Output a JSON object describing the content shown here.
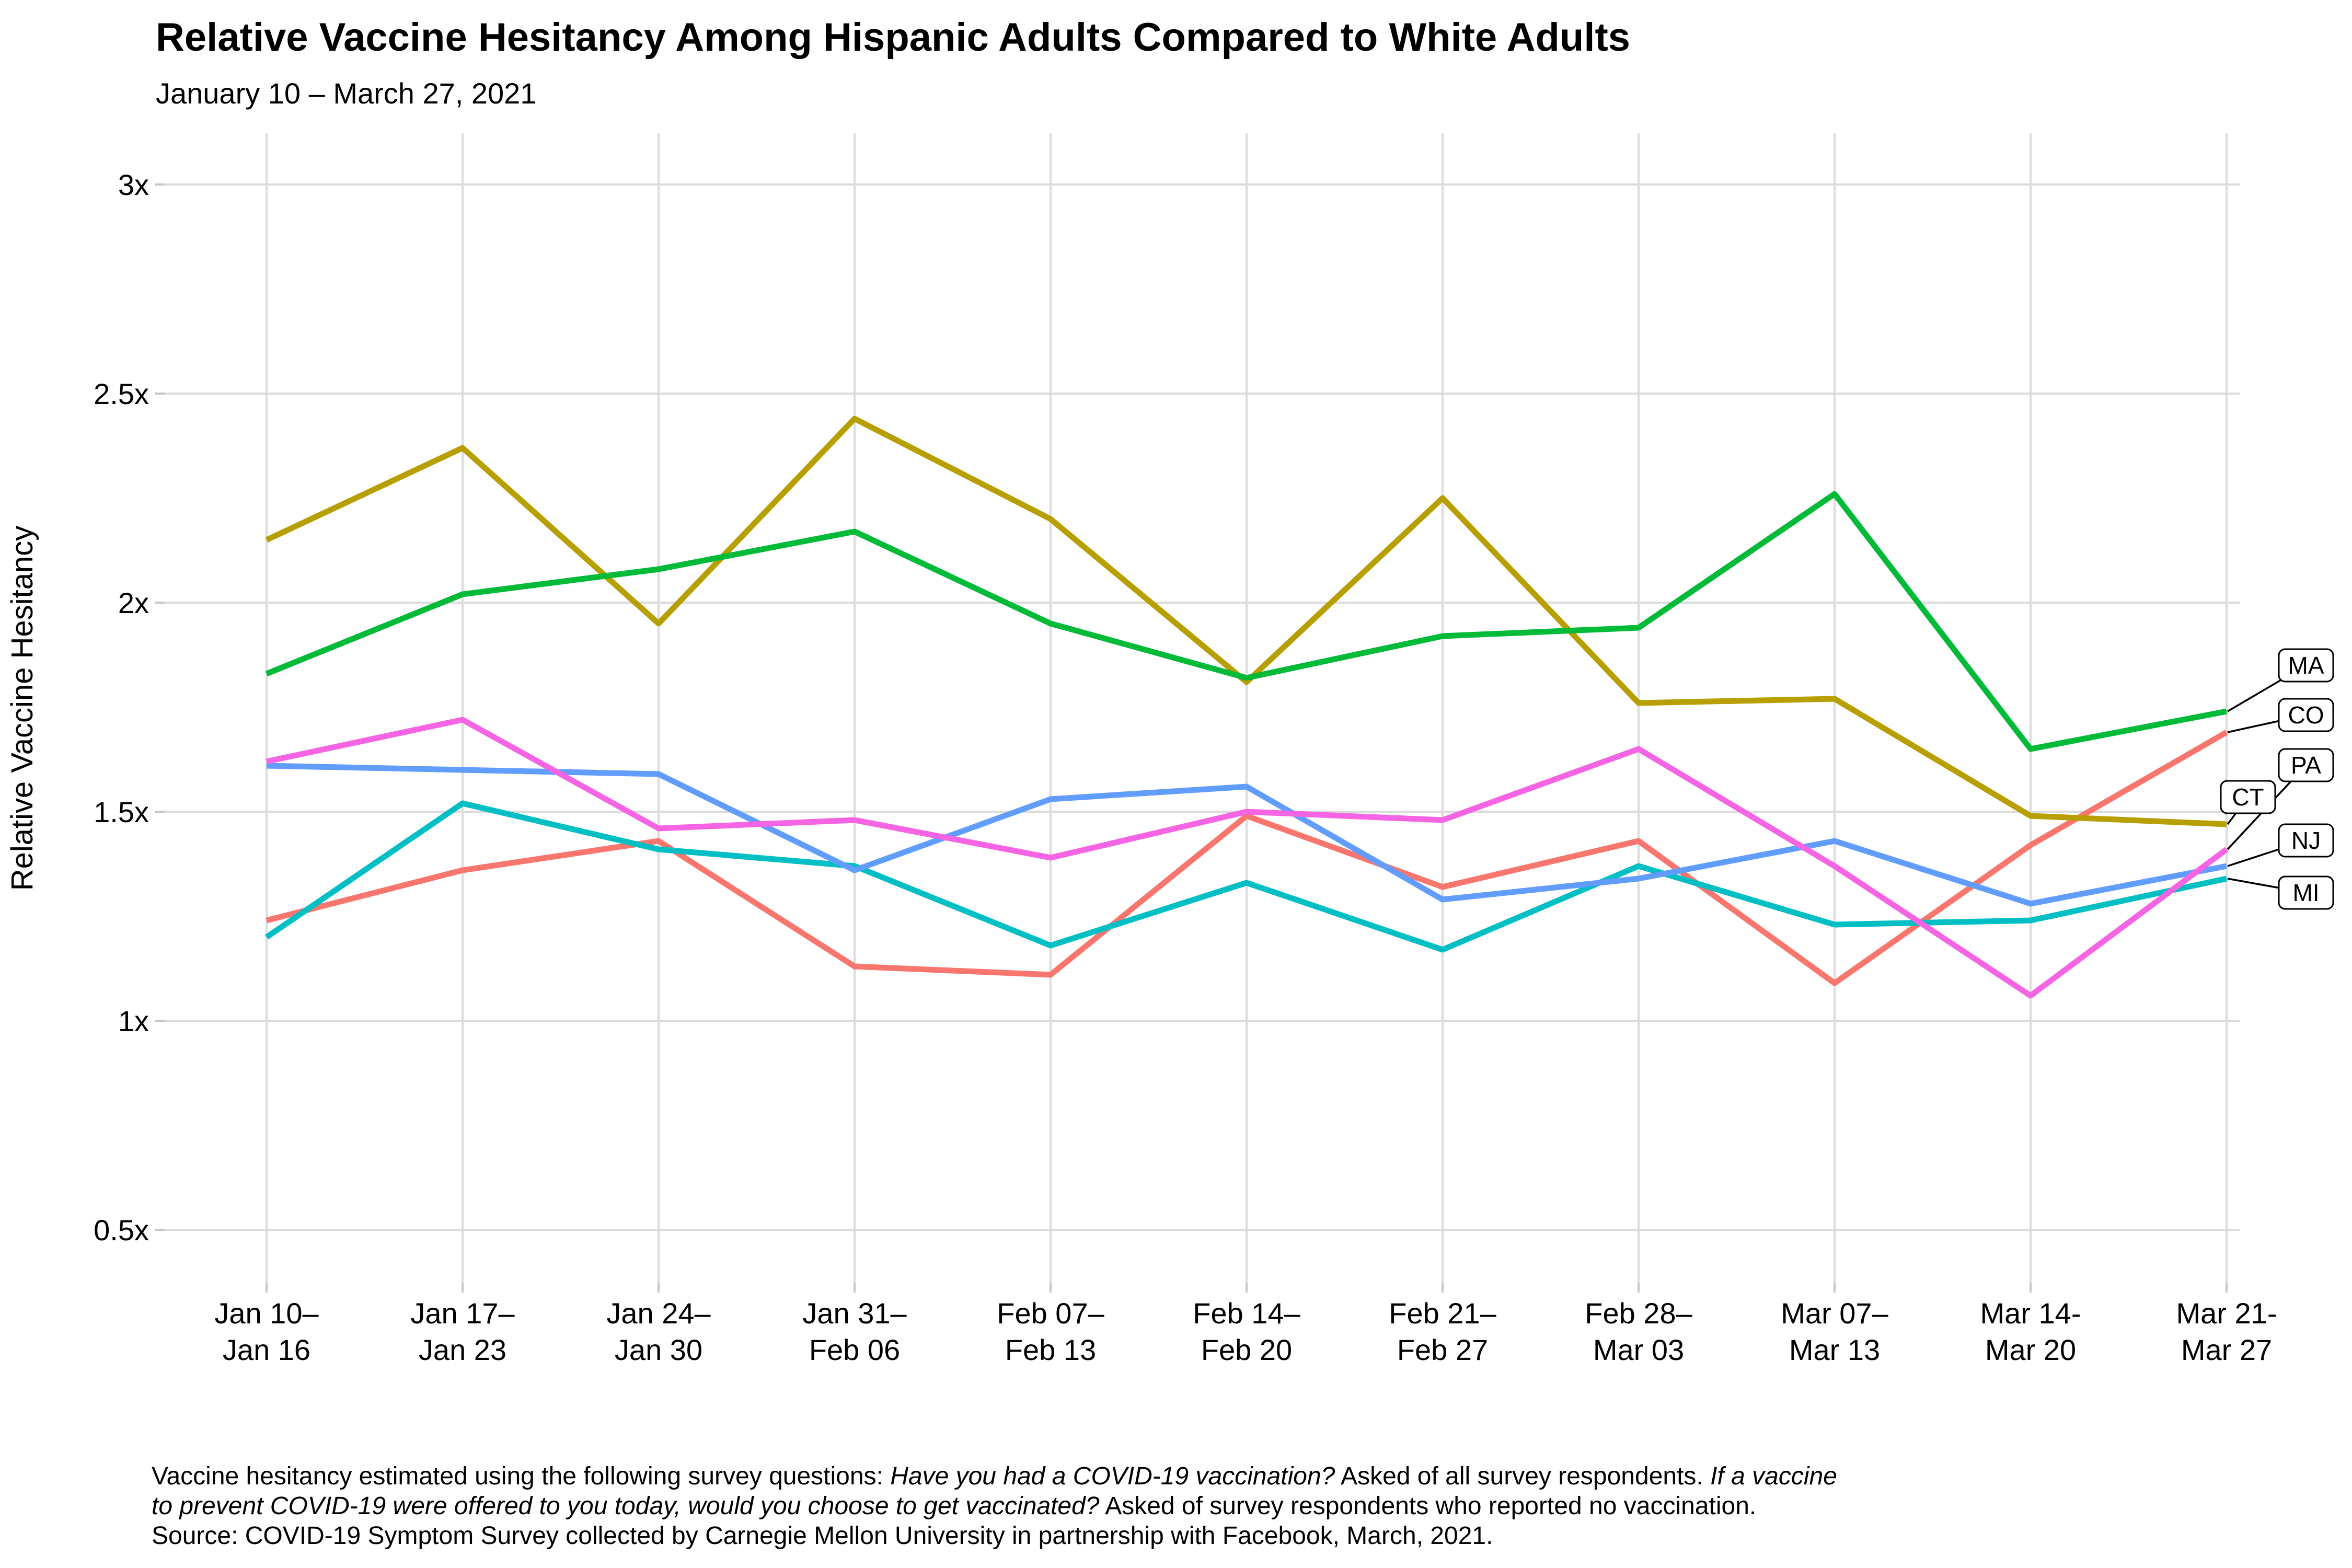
{
  "title": "Relative Vaccine Hesitancy Among Hispanic Adults Compared to White Adults",
  "subtitle": "January 10 – March 27, 2021",
  "y_axis_label": "Relative Vaccine Hesitancy",
  "chart_data": {
    "type": "line",
    "title": "Relative Vaccine Hesitancy Among Hispanic Adults Compared to White Adults",
    "subtitle": "January 10 – March 27, 2021",
    "xlabel": "",
    "ylabel": "Relative Vaccine Hesitancy",
    "grid": true,
    "legend_position": "right-end-labels",
    "ylim": [
      0.37,
      3.12
    ],
    "yticks": [
      {
        "label": "3x",
        "value": 3.0
      },
      {
        "label": "2.5x",
        "value": 2.5
      },
      {
        "label": "2x",
        "value": 2.0
      },
      {
        "label": "1.5x",
        "value": 1.5
      },
      {
        "label": "1x",
        "value": 1.0
      },
      {
        "label": "0.5x",
        "value": 0.5
      }
    ],
    "categories": [
      "Jan 10–Jan 16",
      "Jan 17–Jan 23",
      "Jan 24–Jan 30",
      "Jan 31–Feb 06",
      "Feb 07–Feb 13",
      "Feb 14–Feb 20",
      "Feb 21–Feb 27",
      "Feb 28–Mar 03",
      "Mar 07–Mar 13",
      "Mar 14-Mar 20",
      "Mar 21-Mar 27"
    ],
    "x_tick_lines": [
      [
        "Jan 10–",
        "Jan 16"
      ],
      [
        "Jan 17–",
        "Jan 23"
      ],
      [
        "Jan 24–",
        "Jan 30"
      ],
      [
        "Jan 31–",
        "Feb 06"
      ],
      [
        "Feb 07–",
        "Feb 13"
      ],
      [
        "Feb 14–",
        "Feb 20"
      ],
      [
        "Feb 21–",
        "Feb 27"
      ],
      [
        "Feb 28–",
        "Mar 03"
      ],
      [
        "Mar 07–",
        "Mar 13"
      ],
      [
        "Mar 14-",
        "Mar 20"
      ],
      [
        "Mar 21-",
        "Mar 27"
      ]
    ],
    "series": [
      {
        "name": "CO",
        "color": "#F8766D",
        "values": [
          1.24,
          1.36,
          1.43,
          1.13,
          1.11,
          1.49,
          1.32,
          1.43,
          1.09,
          1.42,
          1.69
        ]
      },
      {
        "name": "CT",
        "color": "#B79F00",
        "values": [
          2.15,
          2.37,
          1.95,
          2.44,
          2.2,
          1.81,
          2.25,
          1.76,
          1.77,
          1.49,
          1.47
        ]
      },
      {
        "name": "MA",
        "color": "#00BA38",
        "values": [
          1.83,
          2.02,
          2.08,
          2.17,
          1.95,
          1.82,
          1.92,
          1.94,
          2.26,
          1.65,
          1.74
        ]
      },
      {
        "name": "MI",
        "color": "#00BFC4",
        "values": [
          1.2,
          1.52,
          1.41,
          1.37,
          1.18,
          1.33,
          1.17,
          1.37,
          1.23,
          1.24,
          1.34
        ]
      },
      {
        "name": "NJ",
        "color": "#619CFF",
        "values": [
          1.61,
          1.6,
          1.59,
          1.36,
          1.53,
          1.56,
          1.29,
          1.34,
          1.43,
          1.28,
          1.37
        ]
      },
      {
        "name": "PA",
        "color": "#F564E3",
        "values": [
          1.62,
          1.72,
          1.46,
          1.48,
          1.39,
          1.5,
          1.48,
          1.65,
          1.37,
          1.06,
          1.41
        ]
      }
    ],
    "end_labels": [
      "MA",
      "CO",
      "PA",
      "CT",
      "NJ",
      "MI"
    ]
  },
  "caption": {
    "lines": [
      [
        {
          "t": "Vaccine hesitancy estimated using the following survey questions: ",
          "i": false
        },
        {
          "t": "Have you had a COVID-19 vaccination?",
          "i": true
        },
        {
          "t": " Asked of all survey respondents. ",
          "i": false
        },
        {
          "t": "If a vaccine",
          "i": true
        }
      ],
      [
        {
          "t": "to prevent COVID-19 were offered to you today, would you choose to get vaccinated?",
          "i": true
        },
        {
          "t": " Asked of survey respondents who reported no vaccination.",
          "i": false
        }
      ],
      [
        {
          "t": "Source: COVID-19 Symptom Survey collected by Carnegie Mellon University in partnership with Facebook, March, 2021.",
          "i": false
        }
      ]
    ]
  },
  "colors": {
    "grid": "#DBDBDB",
    "tick": "#C6C6C6",
    "text": "#000000",
    "background": "#FFFFFF"
  }
}
